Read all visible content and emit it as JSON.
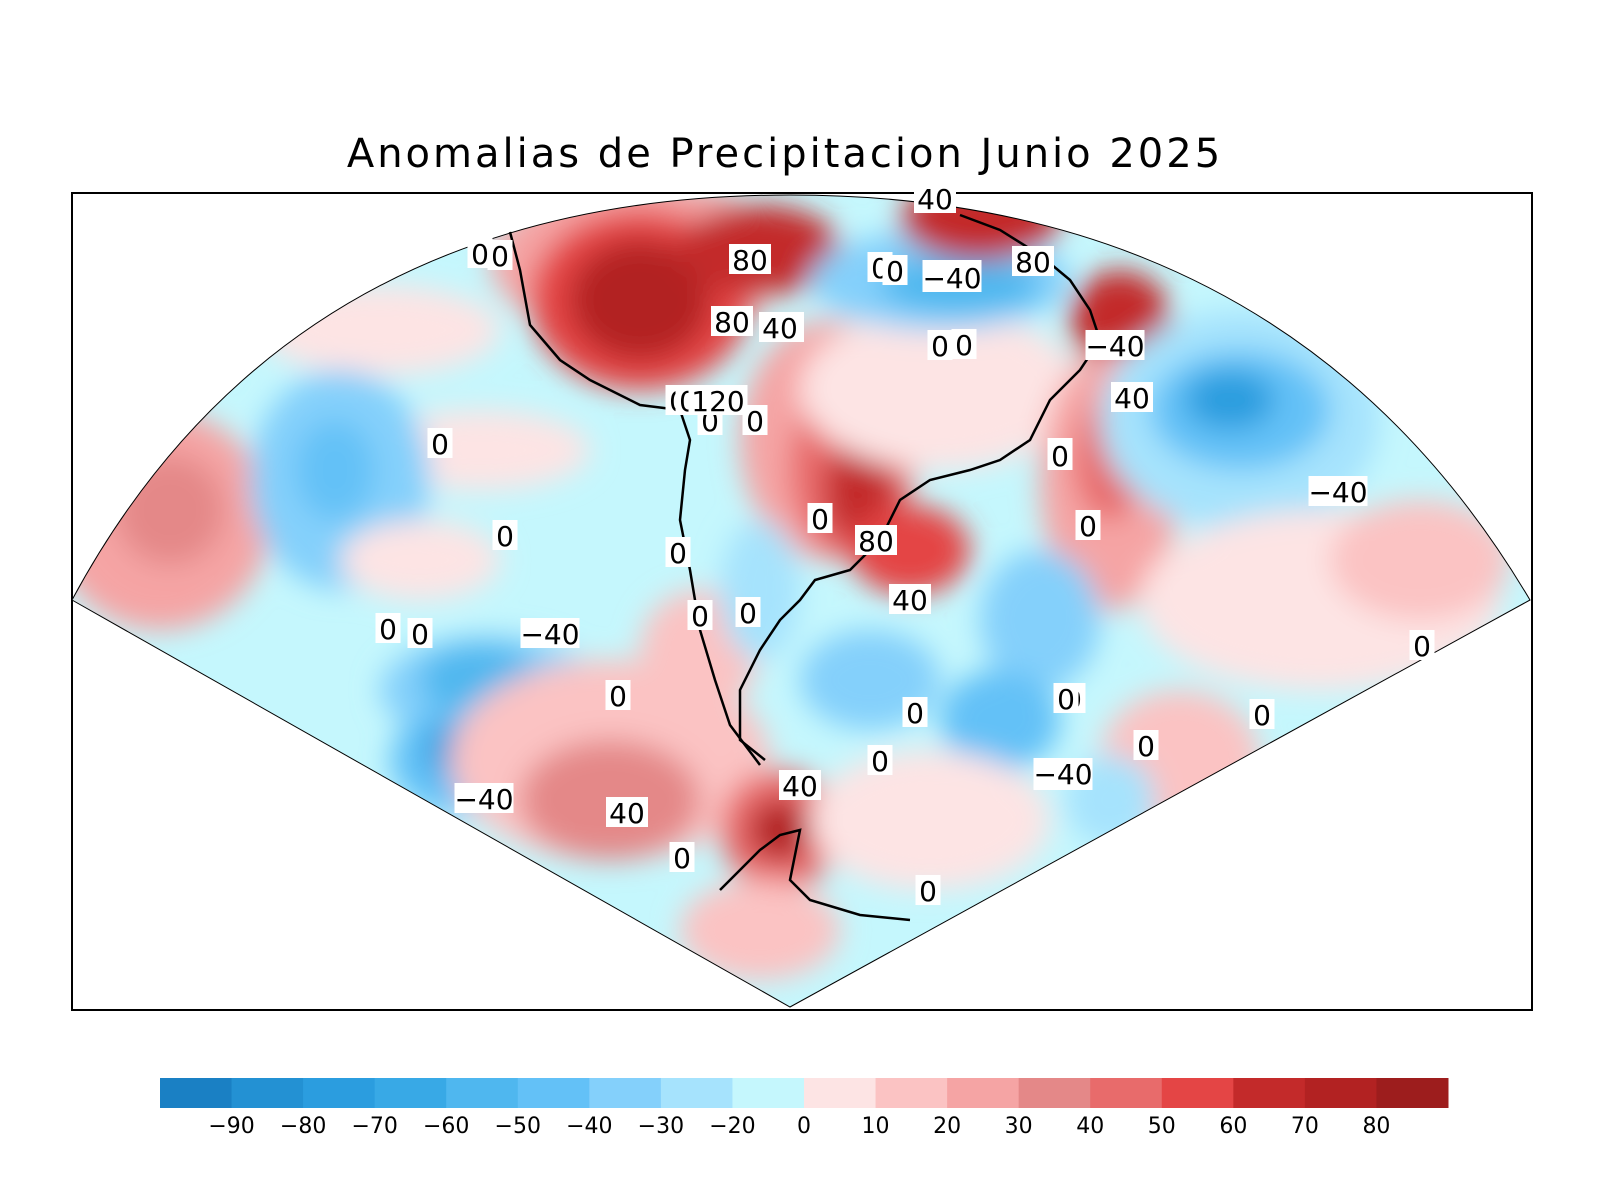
{
  "title": "Anomalias de Precipitacion Junio 2025",
  "colorbar": {
    "colors": [
      "#1a80c4",
      "#2391d3",
      "#2b9ddf",
      "#38a9e6",
      "#4fb7ef",
      "#63c1f7",
      "#84d0fb",
      "#a6e3fd",
      "#c5f7fd",
      "#fde4e4",
      "#fbc3c3",
      "#f5a4a4",
      "#e48888",
      "#e86b6b",
      "#e44545",
      "#c32a2a",
      "#b22222",
      "#9d1d1d"
    ],
    "ticks": [
      "−90",
      "−80",
      "−70",
      "−60",
      "−50",
      "−40",
      "−30",
      "−20",
      "0",
      "10",
      "20",
      "30",
      "40",
      "50",
      "60",
      "70",
      "80"
    ]
  },
  "contour_labels": [
    "0",
    "0",
    "0",
    "0",
    "0",
    "0",
    "0",
    "0",
    "0",
    "0",
    "0",
    "0",
    "0",
    "0",
    "0",
    "0",
    "0",
    "0",
    "0",
    "0",
    "0",
    "0",
    "0",
    "0",
    "0",
    "0",
    "40",
    "40",
    "40",
    "40",
    "40",
    "40",
    "40",
    "80",
    "80",
    "80",
    "80",
    "120",
    "−40",
    "−40",
    "−40",
    "−40",
    "−40",
    "−40",
    "−40",
    "−40",
    "0",
    "0",
    "0",
    "0",
    "0"
  ]
}
